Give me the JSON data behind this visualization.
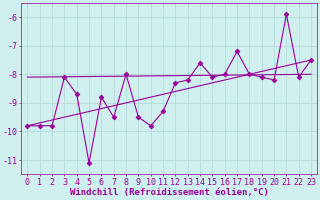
{
  "xlabel": "Windchill (Refroidissement éolien,°C)",
  "x": [
    0,
    1,
    2,
    3,
    4,
    5,
    6,
    7,
    8,
    9,
    10,
    11,
    12,
    13,
    14,
    15,
    16,
    17,
    18,
    19,
    20,
    21,
    22,
    23
  ],
  "main_y": [
    -9.8,
    -9.8,
    -9.8,
    -8.1,
    -8.7,
    -11.1,
    -8.8,
    -9.5,
    -8.0,
    -9.5,
    -9.8,
    -9.3,
    -8.3,
    -8.2,
    -7.6,
    -8.1,
    -8.0,
    -7.2,
    -8.0,
    -8.1,
    -8.2,
    -5.9,
    -8.1,
    -7.5
  ],
  "flat_line_x": [
    0,
    23
  ],
  "flat_line_y": [
    -8.1,
    -8.0
  ],
  "trend_line_x": [
    0,
    23
  ],
  "trend_line_y": [
    -9.8,
    -7.5
  ],
  "bg_color": "#d0efef",
  "grid_color": "#b0d8d8",
  "line_color": "#990099",
  "marker": "D",
  "markersize": 2.5,
  "linewidth": 0.8,
  "ylim": [
    -11.5,
    -5.5
  ],
  "xlim": [
    -0.5,
    23.5
  ],
  "yticks": [
    -11,
    -10,
    -9,
    -8,
    -7,
    -6
  ],
  "xticks": [
    0,
    1,
    2,
    3,
    4,
    5,
    6,
    7,
    8,
    9,
    10,
    11,
    12,
    13,
    14,
    15,
    16,
    17,
    18,
    19,
    20,
    21,
    22,
    23
  ],
  "tick_fontsize": 6,
  "xlabel_fontsize": 6.5
}
